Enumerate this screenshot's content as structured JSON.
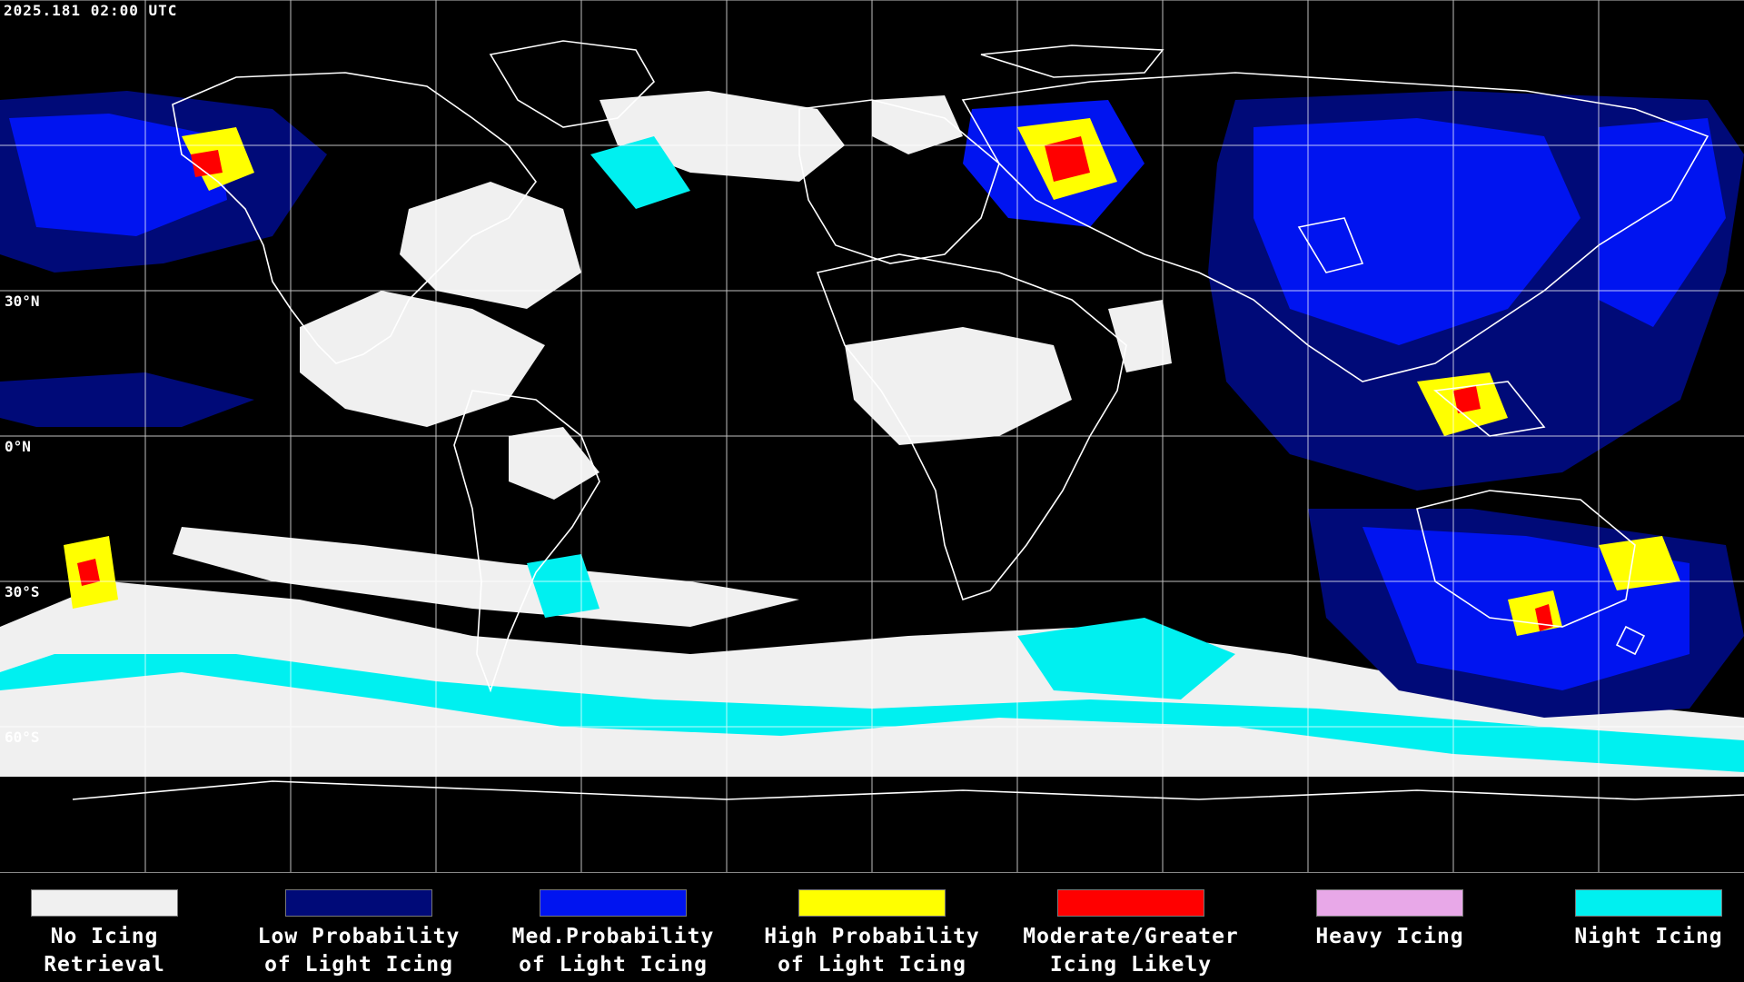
{
  "header": {
    "timestamp": "2025.181 02:00 UTC"
  },
  "lat_labels": {
    "n30": "30°N",
    "eq": "0°N",
    "s30": "30°S",
    "s60": "60°S"
  },
  "map": {
    "projection": "equirectangular",
    "background_color": "#000000",
    "gridline_color": "#ffffff",
    "coastline_color": "#ffffff"
  },
  "legend": {
    "items": [
      {
        "line1": "No Icing",
        "line2": "Retrieval",
        "color": "#f0f0f0"
      },
      {
        "line1": "Low Probability",
        "line2": "of Light Icing",
        "color": "#000a78"
      },
      {
        "line1": "Med.Probability",
        "line2": "of Light Icing",
        "color": "#0014f0"
      },
      {
        "line1": "High Probability",
        "line2": "of Light Icing",
        "color": "#ffff00"
      },
      {
        "line1": "Moderate/Greater",
        "line2": "Icing Likely",
        "color": "#ff0000"
      },
      {
        "line1": "Heavy Icing",
        "line2": "",
        "color": "#e8a8e8"
      },
      {
        "line1": "Night Icing",
        "line2": "",
        "color": "#00f0f0"
      }
    ]
  }
}
